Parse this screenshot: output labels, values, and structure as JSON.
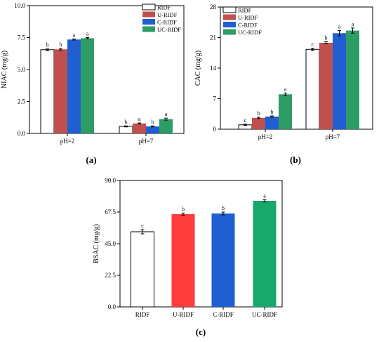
{
  "chart_data": [
    {
      "panel_label": "(a)",
      "type": "bar",
      "ylabel": "NIAC (mg/g)",
      "ylim": [
        0,
        10
      ],
      "yticks": [
        "0.0",
        "2.5",
        "5.0",
        "7.5",
        "10.0"
      ],
      "ytick_values": [
        0,
        2.5,
        5,
        7.5,
        10
      ],
      "categories": [
        "pH=2",
        "pH=7"
      ],
      "legend_position": "top-right",
      "series": [
        {
          "name": "RIDF",
          "color": "#ffffff",
          "values": [
            6.55,
            0.55
          ],
          "errors": [
            0.06,
            0.04
          ],
          "letters": [
            "b",
            "b"
          ]
        },
        {
          "name": "U-RIDF",
          "color": "#c0504d",
          "values": [
            6.58,
            0.78
          ],
          "errors": [
            0.06,
            0.04
          ],
          "letters": [
            "b",
            "a"
          ]
        },
        {
          "name": "C-RIDF",
          "color": "#1f5fd1",
          "values": [
            7.35,
            0.55
          ],
          "errors": [
            0.04,
            0.04
          ],
          "letters": [
            "a",
            "b"
          ]
        },
        {
          "name": "UC-RIDF",
          "color": "#2e9c65",
          "values": [
            7.45,
            1.12
          ],
          "errors": [
            0.05,
            0.08
          ],
          "letters": [
            "a",
            "a"
          ]
        }
      ]
    },
    {
      "panel_label": "(b)",
      "type": "bar",
      "ylabel": "CAC (mg/g)",
      "ylim": [
        0,
        28
      ],
      "yticks": [
        "0",
        "7",
        "14",
        "21",
        "28"
      ],
      "ytick_values": [
        0,
        7,
        14,
        21,
        28
      ],
      "categories": [
        "pH=2",
        "pH=7"
      ],
      "legend_position": "top-left",
      "series": [
        {
          "name": "RIDF",
          "color": "#ffffff",
          "values": [
            1.0,
            18.3
          ],
          "errors": [
            0.15,
            0.25
          ],
          "letters": [
            "c",
            "c"
          ]
        },
        {
          "name": "U-RIDF",
          "color": "#c0504d",
          "values": [
            2.6,
            19.8
          ],
          "errors": [
            0.15,
            0.25
          ],
          "letters": [
            "b",
            "b"
          ]
        },
        {
          "name": "C-RIDF",
          "color": "#1f5fd1",
          "values": [
            2.9,
            22.0
          ],
          "errors": [
            0.15,
            0.6
          ],
          "letters": [
            "b",
            "a"
          ]
        },
        {
          "name": "UC-RIDF",
          "color": "#2e9c65",
          "values": [
            8.0,
            22.6
          ],
          "errors": [
            0.3,
            0.6
          ],
          "letters": [
            "a",
            "a"
          ]
        }
      ]
    },
    {
      "panel_label": "(c)",
      "type": "bar",
      "ylabel": "BSAC (mg/g)",
      "ylim": [
        0,
        90
      ],
      "yticks": [
        "0.0",
        "22.5",
        "45.0",
        "67.5",
        "90.0"
      ],
      "ytick_values": [
        0,
        22.5,
        45,
        67.5,
        90
      ],
      "categories": [
        "RIDF",
        "U-RIDF",
        "C-RIDF",
        "UC-RIDF"
      ],
      "colors": [
        "#ffffff",
        "#ff3b3b",
        "#1f5fd1",
        "#17a86b"
      ],
      "values": [
        53.5,
        66.0,
        66.5,
        75.5
      ],
      "errors": [
        1.5,
        0.8,
        1.0,
        0.8
      ],
      "letters": [
        "c",
        "b",
        "b",
        "a"
      ]
    }
  ]
}
